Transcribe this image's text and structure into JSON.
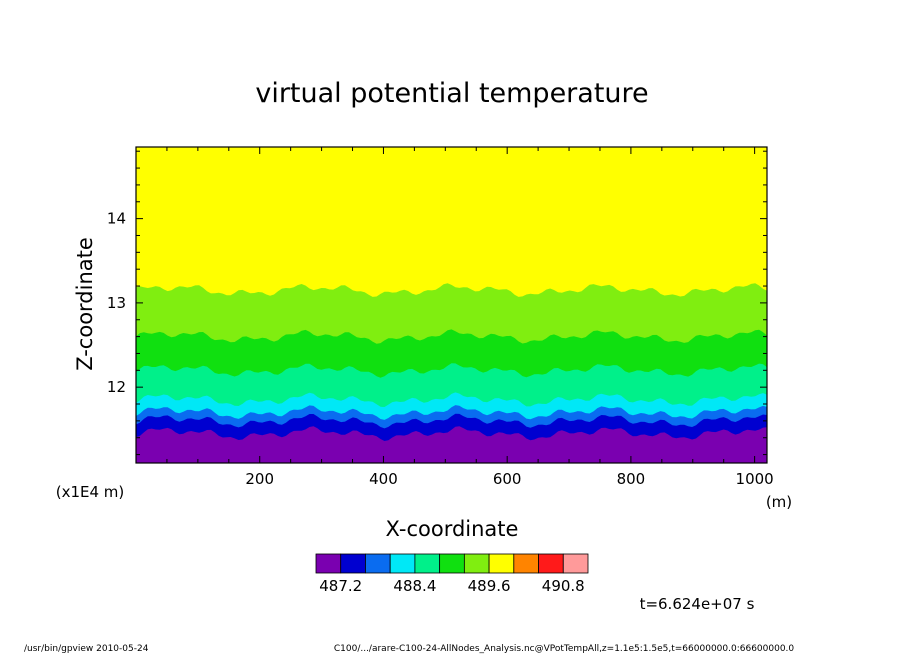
{
  "chart_data": {
    "type": "heatmap",
    "title": "virtual potential temperature",
    "xlabel": "X-coordinate",
    "ylabel": "Z-coordinate",
    "x_unit": "(m)",
    "y_scale_note": "(x1E4 m)",
    "xlim": [
      0,
      1020
    ],
    "ylim": [
      11.1,
      14.85
    ],
    "x_ticks": [
      200,
      400,
      600,
      800,
      1000
    ],
    "y_ticks": [
      12,
      13,
      14
    ],
    "x_tick_labels": [
      "200",
      "400",
      "600",
      "800",
      "1000"
    ],
    "y_tick_labels": [
      "12",
      "13",
      "14"
    ],
    "colorbar": {
      "colors": [
        "#7a00b0",
        "#0000d0",
        "#0a6cf0",
        "#00e8f6",
        "#00f08a",
        "#10e010",
        "#80ee10",
        "#ffff00",
        "#ff8400",
        "#ff1a1a",
        "#ff9a9a"
      ],
      "tick_labels": [
        "487.2",
        "488.4",
        "489.6",
        "490.8"
      ],
      "tick_values": [
        487.2,
        488.4,
        489.6,
        490.8
      ]
    },
    "contour_bands": [
      {
        "level": "487.2",
        "color": "#7a00b0",
        "z_top": 11.45
      },
      {
        "level": "487.6",
        "color": "#0000d0",
        "z_top": 11.6
      },
      {
        "level": "488.0",
        "color": "#0a6cf0",
        "z_top": 11.7
      },
      {
        "level": "488.4",
        "color": "#00e8f6",
        "z_top": 11.85
      },
      {
        "level": "488.8",
        "color": "#00f08a",
        "z_top": 12.2
      },
      {
        "level": "489.2",
        "color": "#10e010",
        "z_top": 12.6
      },
      {
        "level": "489.6",
        "color": "#80ee10",
        "z_top": 13.15
      },
      {
        "level": "490.0",
        "color": "#ffff00",
        "z_top": 14.85
      }
    ],
    "grid": false
  },
  "annotations": {
    "time": "t=6.624e+07 s"
  },
  "footer": {
    "left": "/usr/bin/gpview   2010-05-24",
    "right": "C100/.../arare-C100-24-AllNodes_Analysis.nc@VPotTempAll,z=1.1e5:1.5e5,t=66000000.0:66600000.0"
  }
}
